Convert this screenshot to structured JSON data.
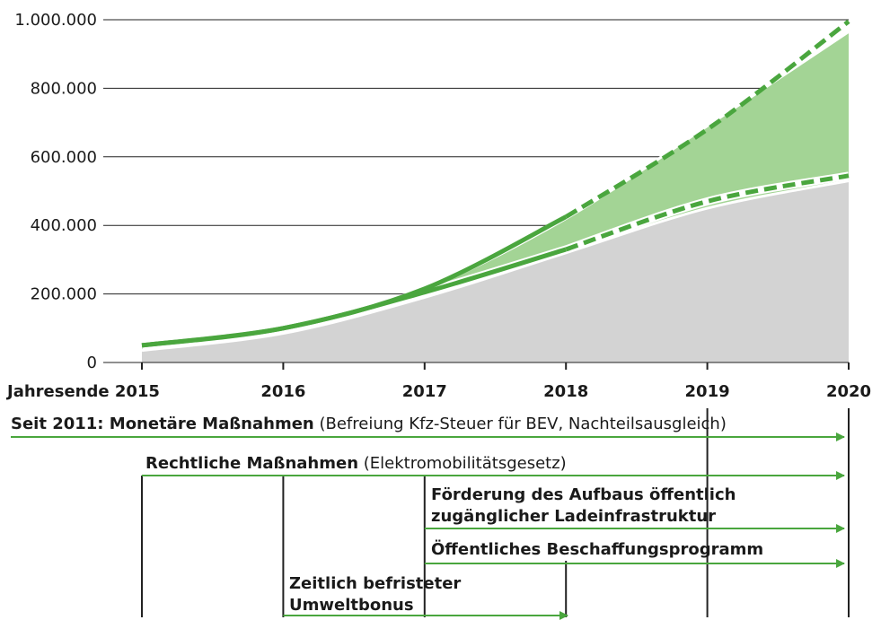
{
  "chart_data": {
    "type": "area",
    "categories": [
      "Jahresende 2015",
      "2016",
      "2017",
      "2018",
      "2019",
      "2020"
    ],
    "ylim": [
      0,
      1000000
    ],
    "yticks": [
      0,
      {
        "value": 200000,
        "label": "200.000"
      },
      {
        "value": 400000,
        "label": "400.000"
      },
      {
        "value": 600000,
        "label": "600.000"
      },
      {
        "value": 800000,
        "label": "800.000"
      },
      {
        "value": 1000000,
        "label": "1.000.000"
      }
    ],
    "grid": true,
    "series": [
      {
        "kind": "area",
        "color": "#a3d495",
        "values": [
          50000,
          100000,
          215000,
          420000,
          690000,
          965000
        ]
      },
      {
        "kind": "area",
        "color": "#d3d3d3",
        "values": [
          35000,
          85000,
          190000,
          320000,
          450000,
          530000
        ]
      },
      {
        "kind": "line",
        "color": "#4aa63e",
        "dashed": false,
        "outline": true,
        "values": [
          50000,
          100000,
          205000,
          330000,
          null,
          null
        ]
      },
      {
        "kind": "line",
        "color": "#4aa63e",
        "dashed": true,
        "outline": true,
        "values": [
          null,
          null,
          null,
          330000,
          470000,
          545000
        ]
      },
      {
        "kind": "line",
        "color": "#4aa63e",
        "dashed": false,
        "outline": false,
        "values": [
          50000,
          100000,
          215000,
          425000,
          null,
          null
        ]
      },
      {
        "kind": "line",
        "color": "#4aa63e",
        "dashed": true,
        "outline": false,
        "values": [
          null,
          null,
          null,
          425000,
          680000,
          995000
        ]
      }
    ]
  },
  "measures": [
    {
      "bold": "Seit 2011: Monetäre Maßnahmen",
      "normal": " (Befreiung Kfz-Steuer für BEV, Nachteilsausgleich)"
    },
    {
      "bold": "Rechtliche Maßnahmen",
      "normal": " (Elektromobilitätsgesetz)"
    },
    {
      "lines": [
        "Förderung des Aufbaus öffentlich",
        "zugänglicher Ladeinfrastruktur"
      ]
    },
    {
      "lines": [
        "Öffentliches Beschaffungsprogramm"
      ]
    },
    {
      "lines": [
        "Zeitlich befristeter",
        "Umweltbonus"
      ]
    }
  ]
}
